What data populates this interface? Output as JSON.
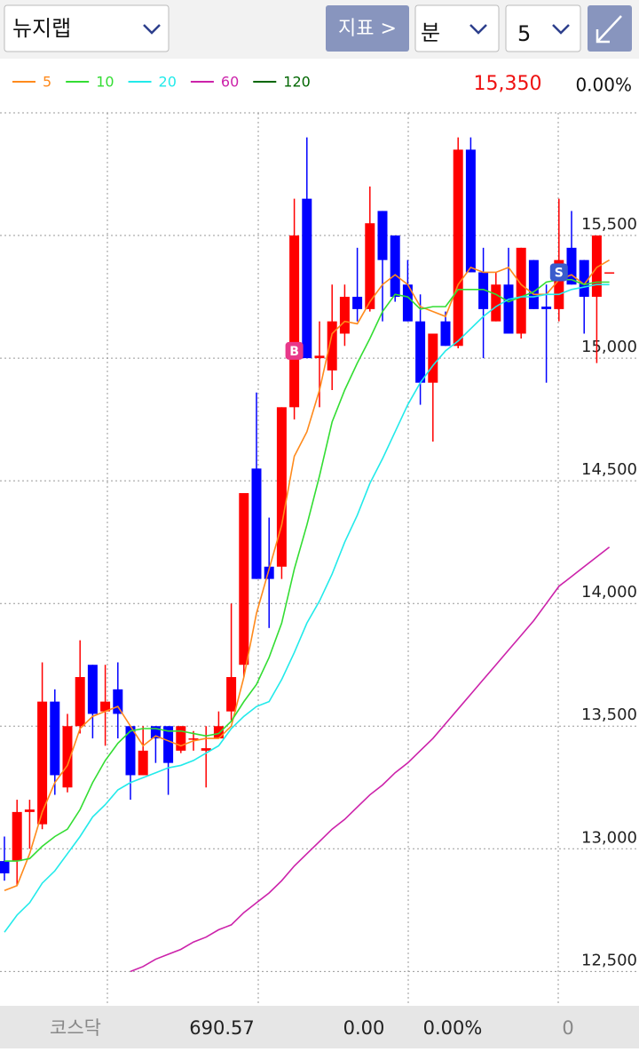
{
  "header": {
    "stock": "뉴지랩",
    "indicator_button": "지표 >",
    "period_unit": "분",
    "period_value": "5"
  },
  "quote": {
    "price": "15,350",
    "change": "0.00%"
  },
  "chart_data": {
    "type": "candlestick",
    "up_color": "#ff0000",
    "down_color": "#0000ff",
    "open": [
      12950,
      12950,
      13150,
      13100,
      13600,
      13250,
      13500,
      13750,
      13560,
      13650,
      13500,
      13300,
      13500,
      13500,
      13400,
      13450,
      13400,
      13450,
      13560,
      13750,
      14550,
      14150,
      14150,
      14800,
      15650,
      15000,
      14950,
      15100,
      15250,
      15200,
      15600,
      15500,
      15300,
      15150,
      14900,
      15150,
      15050,
      15850,
      15350,
      15150,
      15300,
      15100,
      15400,
      15210,
      15200,
      15450,
      15400,
      15250,
      15350
    ],
    "high": [
      13050,
      13200,
      13200,
      13760,
      13650,
      13550,
      13850,
      13750,
      13750,
      13760,
      13500,
      13500,
      13500,
      13500,
      13500,
      13480,
      13500,
      13560,
      14000,
      14450,
      14860,
      14350,
      14800,
      15650,
      15900,
      15150,
      15300,
      15300,
      15450,
      15700,
      15600,
      15500,
      15400,
      15260,
      15100,
      15190,
      15900,
      15900,
      15450,
      15350,
      15450,
      15450,
      15400,
      15300,
      15650,
      15600,
      15400,
      15500,
      15350
    ],
    "low": [
      12870,
      12850,
      13000,
      13080,
      13220,
      13230,
      13470,
      13450,
      13420,
      13450,
      13200,
      13300,
      13350,
      13220,
      13390,
      13400,
      13250,
      13450,
      13520,
      13700,
      14100,
      13900,
      14100,
      14750,
      15000,
      14800,
      14870,
      15050,
      15150,
      15190,
      15150,
      15230,
      15150,
      14810,
      14660,
      15050,
      15040,
      15350,
      15000,
      15150,
      15100,
      15080,
      15200,
      14900,
      15150,
      15300,
      15100,
      14980,
      15350
    ],
    "close": [
      12900,
      13150,
      13160,
      13600,
      13300,
      13500,
      13700,
      13550,
      13600,
      13550,
      13300,
      13400,
      13450,
      13350,
      13500,
      13450,
      13410,
      13500,
      13700,
      14450,
      14100,
      14100,
      14800,
      15500,
      15000,
      15010,
      15150,
      15250,
      15200,
      15550,
      15400,
      15250,
      15150,
      14900,
      15100,
      15050,
      15850,
      15350,
      15200,
      15300,
      15100,
      15450,
      15200,
      15200,
      15400,
      15300,
      15250,
      15500,
      15350
    ],
    "series": [
      {
        "name": "5",
        "color": "#ff8a1c",
        "values": [
          12830,
          12850,
          12980,
          13150,
          13270,
          13340,
          13490,
          13540,
          13560,
          13580,
          13500,
          13420,
          13460,
          13440,
          13420,
          13440,
          13450,
          13450,
          13500,
          13700,
          13960,
          14140,
          14320,
          14600,
          14700,
          14870,
          15100,
          15150,
          15140,
          15230,
          15300,
          15340,
          15300,
          15210,
          15190,
          15170,
          15300,
          15370,
          15350,
          15350,
          15370,
          15300,
          15260,
          15260,
          15320,
          15340,
          15300,
          15370,
          15400
        ]
      },
      {
        "name": "10",
        "color": "#33dd33",
        "values": [
          12950,
          12950,
          12960,
          13010,
          13050,
          13080,
          13160,
          13270,
          13360,
          13430,
          13480,
          13490,
          13490,
          13480,
          13480,
          13470,
          13460,
          13470,
          13520,
          13600,
          13670,
          13780,
          13920,
          14140,
          14320,
          14520,
          14740,
          14870,
          14980,
          15080,
          15190,
          15260,
          15250,
          15200,
          15210,
          15210,
          15280,
          15280,
          15280,
          15260,
          15230,
          15250,
          15270,
          15310,
          15320,
          15320,
          15300,
          15310,
          15310
        ]
      },
      {
        "name": "20",
        "color": "#22eaea",
        "values": [
          12660,
          12730,
          12780,
          12860,
          12910,
          12980,
          13050,
          13130,
          13180,
          13240,
          13270,
          13290,
          13310,
          13330,
          13340,
          13360,
          13390,
          13420,
          13490,
          13540,
          13580,
          13600,
          13690,
          13800,
          13920,
          14010,
          14120,
          14250,
          14360,
          14490,
          14590,
          14700,
          14810,
          14900,
          14970,
          15030,
          15070,
          15120,
          15170,
          15210,
          15240,
          15250,
          15250,
          15260,
          15260,
          15280,
          15290,
          15300,
          15300
        ]
      },
      {
        "name": "60",
        "color": "#cc22aa",
        "values": [
          null,
          null,
          null,
          null,
          null,
          null,
          null,
          null,
          null,
          null,
          12500,
          12520,
          12550,
          12570,
          12590,
          12620,
          12640,
          12670,
          12690,
          12740,
          12780,
          12820,
          12870,
          12930,
          12980,
          13030,
          13080,
          13120,
          13170,
          13220,
          13260,
          13310,
          13350,
          13400,
          13450,
          13510,
          13570,
          13630,
          13690,
          13750,
          13810,
          13870,
          13930,
          14000,
          14070,
          14110,
          14150,
          14190,
          14230
        ]
      },
      {
        "name": "120",
        "color": "#006600",
        "values": [
          null,
          null,
          null,
          null,
          null,
          null,
          null,
          null,
          null,
          null,
          null,
          null,
          null,
          null,
          null,
          null,
          null,
          null,
          null,
          null,
          null,
          null,
          null,
          null,
          null,
          null,
          null,
          null,
          null,
          null,
          null,
          null,
          null,
          null,
          null,
          null,
          null,
          null,
          null,
          null,
          null,
          null,
          null,
          null,
          null,
          null,
          null,
          null,
          null
        ]
      }
    ],
    "markers": [
      {
        "label": "B",
        "index": 23,
        "value": 15030,
        "color": "#e8388a"
      },
      {
        "label": "S",
        "index": 44,
        "value": 15350,
        "color": "#3a5ccc"
      }
    ],
    "ylim": [
      12360,
      16000
    ],
    "yticks": [
      {
        "value": 12500,
        "label": "12,500"
      },
      {
        "value": 13000,
        "label": "13,000"
      },
      {
        "value": 13500,
        "label": "13,500"
      },
      {
        "value": 14000,
        "label": "14,000"
      },
      {
        "value": 14500,
        "label": "14,500"
      },
      {
        "value": 15000,
        "label": "15,000"
      },
      {
        "value": 15500,
        "label": "15,500"
      },
      {
        "value": 16000,
        "label": ""
      }
    ],
    "grid": true
  },
  "footer": {
    "market": "코스닥",
    "index_value": "690.57",
    "change": "0.00",
    "change_rate": "0.00%",
    "volume": "0"
  }
}
